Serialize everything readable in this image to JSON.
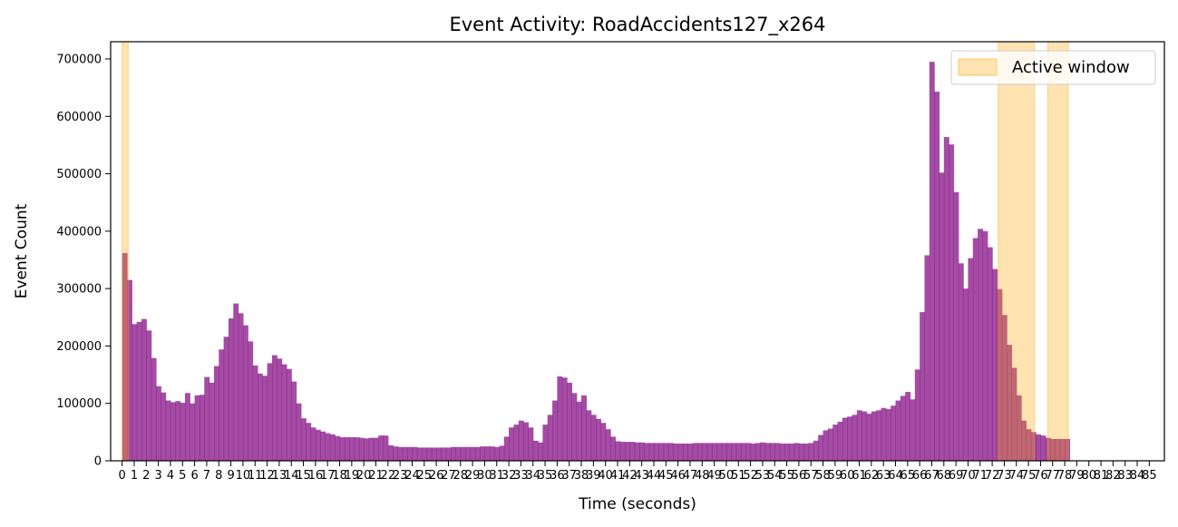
{
  "chart_data": {
    "type": "bar",
    "title": "Event Activity: RoadAccidents127_x264",
    "xlabel": "Time (seconds)",
    "ylabel": "Event Count",
    "xlim": [
      -0.95,
      86.25
    ],
    "ylim": [
      0,
      730000
    ],
    "yticks": [
      0,
      100000,
      200000,
      300000,
      400000,
      500000,
      600000,
      700000
    ],
    "ytick_labels": [
      "0",
      "100000",
      "200000",
      "300000",
      "400000",
      "500000",
      "600000",
      "700000"
    ],
    "xticks": [
      0,
      1,
      2,
      3,
      4,
      5,
      6,
      7,
      8,
      9,
      10,
      11,
      12,
      13,
      14,
      15,
      16,
      17,
      18,
      19,
      20,
      21,
      22,
      23,
      24,
      25,
      26,
      27,
      28,
      29,
      30,
      31,
      32,
      33,
      34,
      35,
      36,
      37,
      38,
      39,
      40,
      41,
      42,
      43,
      44,
      45,
      46,
      47,
      48,
      49,
      50,
      51,
      52,
      53,
      54,
      55,
      56,
      57,
      58,
      59,
      60,
      61,
      62,
      63,
      64,
      65,
      66,
      67,
      68,
      69,
      70,
      71,
      72,
      73,
      74,
      75,
      76,
      77,
      78,
      79,
      80,
      81,
      82,
      83,
      84,
      85
    ],
    "xtick_labels": [
      "0",
      "1",
      "2",
      "3",
      "4",
      "5",
      "6",
      "7",
      "8",
      "9",
      "10",
      "11",
      "12",
      "13",
      "14",
      "15",
      "16",
      "17",
      "18",
      "19",
      "20",
      "21",
      "22",
      "23",
      "24",
      "25",
      "26",
      "27",
      "28",
      "29",
      "30",
      "31",
      "32",
      "33",
      "34",
      "35",
      "36",
      "37",
      "38",
      "39",
      "40",
      "41",
      "42",
      "43",
      "44",
      "45",
      "46",
      "47",
      "48",
      "49",
      "50",
      "51",
      "52",
      "53",
      "54",
      "55",
      "56",
      "57",
      "58",
      "59",
      "60",
      "61",
      "62",
      "63",
      "64",
      "65",
      "66",
      "67",
      "68",
      "69",
      "70",
      "71",
      "72",
      "73",
      "74",
      "75",
      "76",
      "77",
      "78",
      "79",
      "80",
      "81",
      "82",
      "83",
      "84",
      "85"
    ],
    "bar_width_seconds": 0.4,
    "bar_color": "#8b1a8b",
    "window_color": "#ffa500",
    "grid": false,
    "legend": {
      "position": "top-right",
      "entries": [
        "Active window"
      ]
    },
    "active_windows": [
      [
        0.0,
        0.5
      ],
      [
        72.5,
        75.5
      ],
      [
        76.6,
        78.3
      ]
    ],
    "values": [
      362000,
      315000,
      238000,
      242000,
      247000,
      227000,
      179000,
      130000,
      119000,
      105000,
      102000,
      104000,
      101000,
      118000,
      100000,
      114000,
      115000,
      146000,
      136000,
      165000,
      194000,
      216000,
      248000,
      274000,
      257000,
      236000,
      208000,
      166000,
      152000,
      148000,
      170000,
      184000,
      178000,
      168000,
      160000,
      138000,
      100000,
      74000,
      66000,
      58000,
      54000,
      51000,
      48000,
      46000,
      43000,
      41000,
      41000,
      41000,
      41000,
      40000,
      39000,
      40000,
      40000,
      44000,
      44000,
      27000,
      25000,
      24000,
      24000,
      24000,
      24000,
      23000,
      23000,
      23000,
      23000,
      23000,
      23000,
      23000,
      24000,
      24000,
      24000,
      24000,
      24000,
      24000,
      25000,
      25000,
      25000,
      24000,
      26000,
      42000,
      58000,
      63000,
      70000,
      67000,
      58000,
      35000,
      32000,
      63000,
      80000,
      105000,
      147000,
      145000,
      136000,
      118000,
      103000,
      114000,
      88000,
      80000,
      73000,
      66000,
      55000,
      42000,
      34000,
      33000,
      33000,
      33000,
      32000,
      32000,
      31000,
      31000,
      31000,
      31000,
      31000,
      31000,
      30000,
      30000,
      30000,
      30000,
      31000,
      31000,
      31000,
      31000,
      31000,
      31000,
      31000,
      31000,
      31000,
      31000,
      31000,
      31000,
      30000,
      31000,
      32000,
      31000,
      31000,
      31000,
      30000,
      30000,
      30000,
      31000,
      30000,
      30000,
      31000,
      35000,
      45000,
      53000,
      56000,
      63000,
      68000,
      75000,
      77000,
      80000,
      88000,
      86000,
      82000,
      86000,
      88000,
      92000,
      90000,
      96000,
      105000,
      113000,
      120000,
      107000,
      159000,
      259000,
      358000,
      695000,
      643000,
      502000,
      564000,
      551000,
      468000,
      344000,
      300000,
      353000,
      388000,
      404000,
      400000,
      372000,
      334000,
      299000,
      254000,
      202000,
      162000,
      114000,
      70000,
      55000,
      50000,
      46000,
      44000,
      40000,
      38000,
      38000,
      38000,
      38000
    ]
  }
}
